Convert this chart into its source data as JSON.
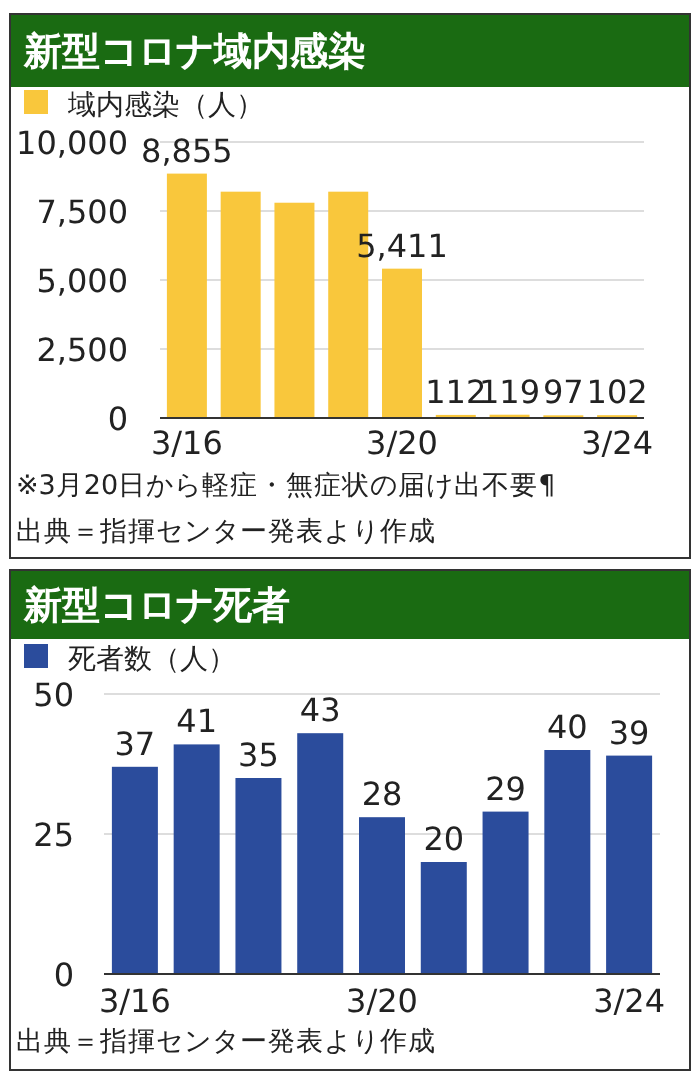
{
  "chart_data": [
    {
      "type": "bar",
      "title": "新型コロナ域内感染",
      "categories": [
        "3/16",
        null,
        null,
        null,
        "3/20",
        null,
        null,
        null,
        "3/24"
      ],
      "series": [
        {
          "name": "域内感染（人）",
          "color": "#f9c73c",
          "values": [
            8855,
            8200,
            7800,
            8200,
            5411,
            112,
            119,
            97,
            102
          ]
        }
      ],
      "value_labels": [
        "8,855",
        null,
        null,
        null,
        "5,411",
        "112",
        "119",
        "97",
        "102"
      ],
      "ylim": [
        0,
        10000
      ],
      "yticks": [
        0,
        {
          "value": 2500,
          "label": "2,500"
        },
        {
          "value": 5000,
          "label": "5,000"
        },
        {
          "value": 7500,
          "label": "7,500"
        },
        {
          "value": 10000,
          "label": "10,000"
        }
      ],
      "grid": "y",
      "legend": "top left",
      "annotations": [
        "※3月20日から軽症・無症状の届け出不要¶",
        "出典＝指揮センター発表より作成"
      ]
    },
    {
      "type": "bar",
      "title": "新型コロナ死者",
      "categories": [
        "3/16",
        null,
        null,
        null,
        "3/20",
        null,
        null,
        null,
        "3/24"
      ],
      "series": [
        {
          "name": "死者数（人）",
          "color": "#2b4c9c",
          "values": [
            37,
            41,
            35,
            43,
            28,
            20,
            29,
            40,
            39
          ]
        }
      ],
      "data_labels": true,
      "ylim": [
        0,
        50
      ],
      "yticks": [
        0,
        25,
        50
      ],
      "grid": "y",
      "legend": "top left",
      "annotations": [
        "出典＝指揮センター発表より作成"
      ]
    }
  ]
}
